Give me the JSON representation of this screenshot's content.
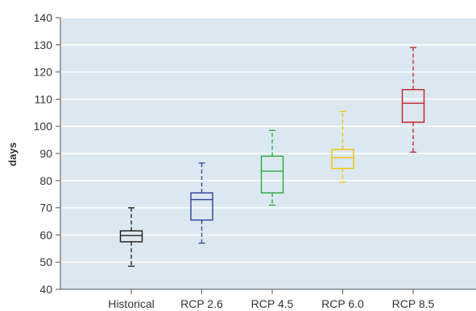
{
  "chart_data": {
    "type": "box",
    "title": "",
    "xlabel": "",
    "ylabel": "days",
    "ylim": [
      40,
      140
    ],
    "yticks": [
      40,
      50,
      60,
      70,
      80,
      90,
      100,
      110,
      120,
      130,
      140
    ],
    "grid": "horizontal",
    "background_color": "#dbe8f1",
    "gridline_color": "#ffffff",
    "categories": [
      "Historical",
      "RCP 2.6",
      "RCP 4.5",
      "RCP 6.0",
      "RCP 8.5"
    ],
    "series": [
      {
        "category": "Historical",
        "min": 48.5,
        "q1": 57.5,
        "median": 59.8,
        "q3": 61.5,
        "max": 70,
        "color": "#1a1a1a"
      },
      {
        "category": "RCP 2.6",
        "min": 57,
        "q1": 65.5,
        "median": 73,
        "q3": 75.5,
        "max": 86.5,
        "color": "#2e3f97"
      },
      {
        "category": "RCP 4.5",
        "min": 71,
        "q1": 75.5,
        "median": 83.5,
        "q3": 89,
        "max": 98.5,
        "color": "#2ca83b"
      },
      {
        "category": "RCP 6.0",
        "min": 79.5,
        "q1": 84.5,
        "median": 88.5,
        "q3": 91.5,
        "max": 105.5,
        "color": "#f2c10f"
      },
      {
        "category": "RCP 8.5",
        "min": 90.5,
        "q1": 101.5,
        "median": 108.5,
        "q3": 113.5,
        "max": 129,
        "color": "#c41e24"
      }
    ]
  }
}
